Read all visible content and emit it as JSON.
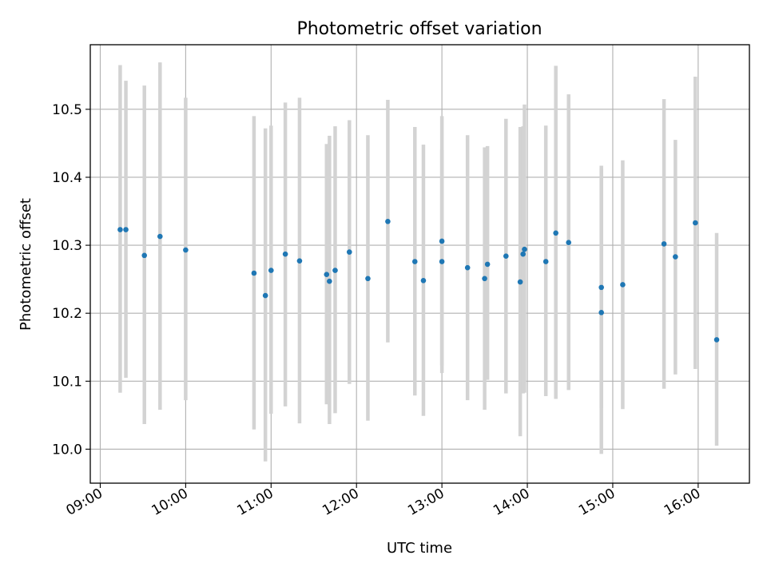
{
  "chart_data": {
    "type": "scatter",
    "title": "Photometric offset variation",
    "xlabel": "UTC time",
    "ylabel": "Photometric offset",
    "x_ticks": [
      "09:00",
      "10:00",
      "11:00",
      "12:00",
      "13:00",
      "14:00",
      "15:00",
      "16:00"
    ],
    "y_ticks": [
      "10.0",
      "10.1",
      "10.2",
      "10.3",
      "10.4",
      "10.5"
    ],
    "xlim": [
      "08:53",
      "16:36"
    ],
    "ylim": [
      9.95,
      10.595
    ],
    "grid": true,
    "colors": {
      "points": "#1f77b4",
      "error_bars": "#d3d3d3",
      "grid": "#b0b0b0"
    },
    "points": [
      {
        "x": "09:14",
        "y": 10.323,
        "y_low": 10.083,
        "y_high": 10.565
      },
      {
        "x": "09:18",
        "y": 10.323,
        "y_low": 10.105,
        "y_high": 10.542
      },
      {
        "x": "09:31",
        "y": 10.285,
        "y_low": 10.037,
        "y_high": 10.535
      },
      {
        "x": "09:42",
        "y": 10.313,
        "y_low": 10.058,
        "y_high": 10.569
      },
      {
        "x": "10:00",
        "y": 10.293,
        "y_low": 10.072,
        "y_high": 10.517
      },
      {
        "x": "10:48",
        "y": 10.259,
        "y_low": 10.029,
        "y_high": 10.49
      },
      {
        "x": "10:56",
        "y": 10.226,
        "y_low": 9.982,
        "y_high": 10.472
      },
      {
        "x": "11:00",
        "y": 10.263,
        "y_low": 10.052,
        "y_high": 10.476
      },
      {
        "x": "11:10",
        "y": 10.287,
        "y_low": 10.063,
        "y_high": 10.51
      },
      {
        "x": "11:20",
        "y": 10.277,
        "y_low": 10.038,
        "y_high": 10.517
      },
      {
        "x": "11:39",
        "y": 10.257,
        "y_low": 10.066,
        "y_high": 10.449
      },
      {
        "x": "11:41",
        "y": 10.247,
        "y_low": 10.037,
        "y_high": 10.461
      },
      {
        "x": "11:45",
        "y": 10.263,
        "y_low": 10.053,
        "y_high": 10.475
      },
      {
        "x": "11:55",
        "y": 10.29,
        "y_low": 10.096,
        "y_high": 10.484
      },
      {
        "x": "12:08",
        "y": 10.251,
        "y_low": 10.042,
        "y_high": 10.462
      },
      {
        "x": "12:22",
        "y": 10.335,
        "y_low": 10.157,
        "y_high": 10.514
      },
      {
        "x": "12:41",
        "y": 10.276,
        "y_low": 10.079,
        "y_high": 10.474
      },
      {
        "x": "12:47",
        "y": 10.248,
        "y_low": 10.049,
        "y_high": 10.448
      },
      {
        "x": "13:00",
        "y": 10.306,
        "y_low": 10.123,
        "y_high": 10.49
      },
      {
        "x": "13:00",
        "y": 10.276,
        "y_low": 10.112,
        "y_high": 10.44
      },
      {
        "x": "13:18",
        "y": 10.267,
        "y_low": 10.072,
        "y_high": 10.462
      },
      {
        "x": "13:30",
        "y": 10.251,
        "y_low": 10.058,
        "y_high": 10.444
      },
      {
        "x": "13:32",
        "y": 10.272,
        "y_low": 10.102,
        "y_high": 10.446
      },
      {
        "x": "13:45",
        "y": 10.284,
        "y_low": 10.082,
        "y_high": 10.486
      },
      {
        "x": "13:55",
        "y": 10.246,
        "y_low": 10.019,
        "y_high": 10.474
      },
      {
        "x": "13:57",
        "y": 10.287,
        "y_low": 10.082,
        "y_high": 10.475
      },
      {
        "x": "13:58",
        "y": 10.294,
        "y_low": 10.083,
        "y_high": 10.507
      },
      {
        "x": "14:13",
        "y": 10.276,
        "y_low": 10.078,
        "y_high": 10.476
      },
      {
        "x": "14:20",
        "y": 10.318,
        "y_low": 10.074,
        "y_high": 10.564
      },
      {
        "x": "14:29",
        "y": 10.304,
        "y_low": 10.087,
        "y_high": 10.522
      },
      {
        "x": "14:52",
        "y": 10.238,
        "y_low": 10.06,
        "y_high": 10.417
      },
      {
        "x": "14:52",
        "y": 10.201,
        "y_low": 9.993,
        "y_high": 10.413
      },
      {
        "x": "15:07",
        "y": 10.242,
        "y_low": 10.059,
        "y_high": 10.425
      },
      {
        "x": "15:36",
        "y": 10.302,
        "y_low": 10.089,
        "y_high": 10.515
      },
      {
        "x": "15:44",
        "y": 10.283,
        "y_low": 10.11,
        "y_high": 10.455
      },
      {
        "x": "15:58",
        "y": 10.333,
        "y_low": 10.118,
        "y_high": 10.548
      },
      {
        "x": "16:13",
        "y": 10.161,
        "y_low": 10.005,
        "y_high": 10.318
      }
    ]
  }
}
